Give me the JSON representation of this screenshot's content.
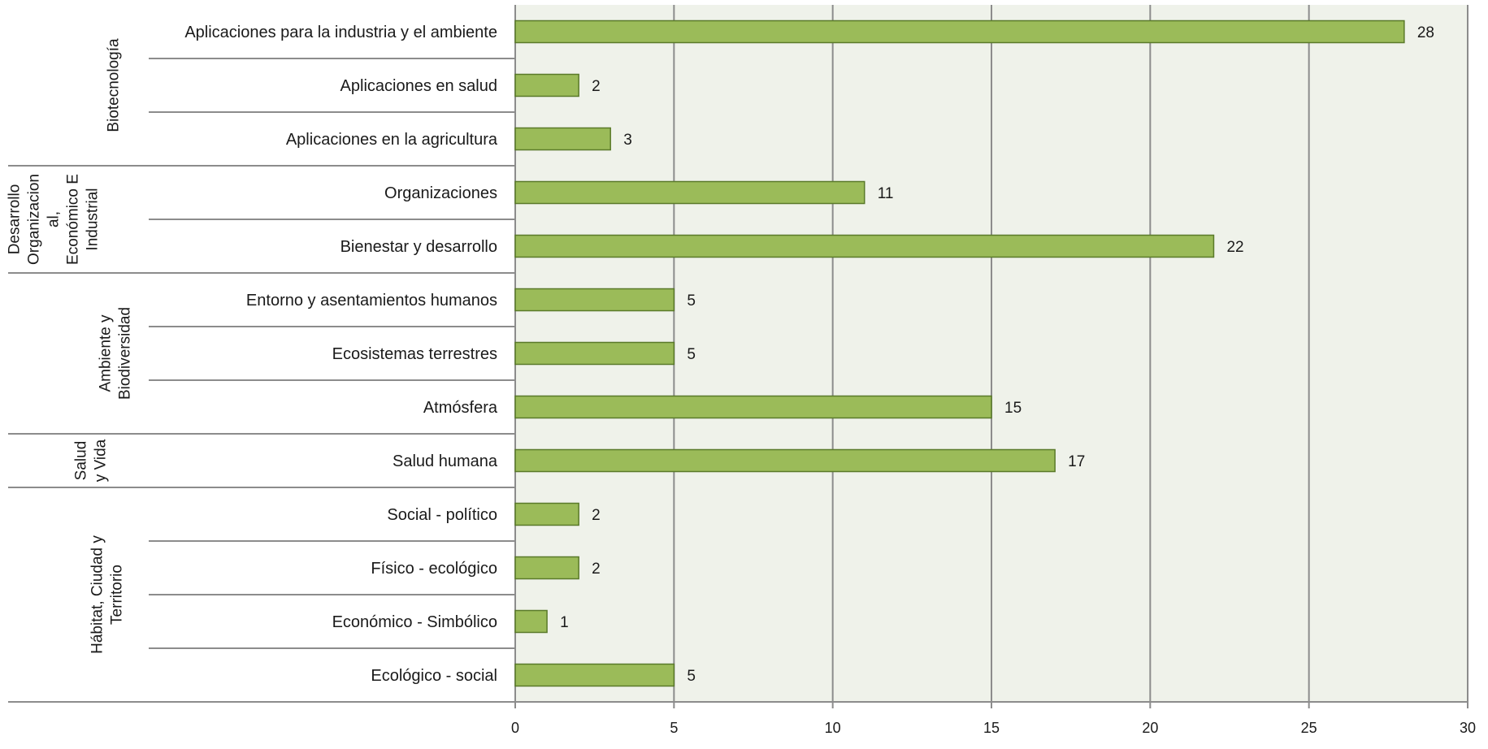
{
  "chart_data": {
    "type": "bar",
    "orientation": "horizontal",
    "groups": [
      {
        "name": "Biotecnología",
        "categories": [
          {
            "label": "Aplicaciones para la industria y el ambiente",
            "value": 28
          },
          {
            "label": "Aplicaciones en salud",
            "value": 2
          },
          {
            "label": "Aplicaciones en la agricultura",
            "value": 3
          }
        ]
      },
      {
        "name": "Desarrollo Organizacional, Económico E Industrial",
        "name_lines": [
          "Desarrollo",
          "Organizacion",
          "al,",
          "Económico E",
          "Industrial"
        ],
        "categories": [
          {
            "label": "Organizaciones",
            "value": 11
          },
          {
            "label": "Bienestar y desarrollo",
            "value": 22
          }
        ]
      },
      {
        "name": "Ambiente y Biodiversidad",
        "name_lines": [
          "Ambiente y",
          "Biodiversidad"
        ],
        "categories": [
          {
            "label": "Entorno y asentamientos humanos",
            "value": 5
          },
          {
            "label": "Ecosistemas terrestres",
            "value": 5
          },
          {
            "label": "Atmósfera",
            "value": 15
          }
        ]
      },
      {
        "name": "Salud y Vida",
        "name_lines": [
          "Salud",
          "y Vida"
        ],
        "categories": [
          {
            "label": "Salud humana",
            "value": 17
          }
        ]
      },
      {
        "name": "Hábitat, Ciudad y Territorio",
        "name_lines": [
          "Hábitat, Ciudad y",
          "Territorio"
        ],
        "categories": [
          {
            "label": "Social - político",
            "value": 2
          },
          {
            "label": "Físico - ecológico",
            "value": 2
          },
          {
            "label": "Económico - Simbólico",
            "value": 1
          },
          {
            "label": "Ecológico - social",
            "value": 5
          }
        ]
      }
    ],
    "xlim": [
      0,
      30
    ],
    "xticks": [
      0,
      5,
      10,
      15,
      20,
      25,
      30
    ],
    "grid": true,
    "data_labels": true,
    "colors": {
      "bar_fill": "#9bbb59",
      "bar_stroke": "#5a7a2a",
      "plot_background": "#eff2ea",
      "gridline": "#8c8c8c",
      "axis_line": "#8c8c8c"
    },
    "title": "",
    "xlabel": "",
    "ylabel": ""
  }
}
